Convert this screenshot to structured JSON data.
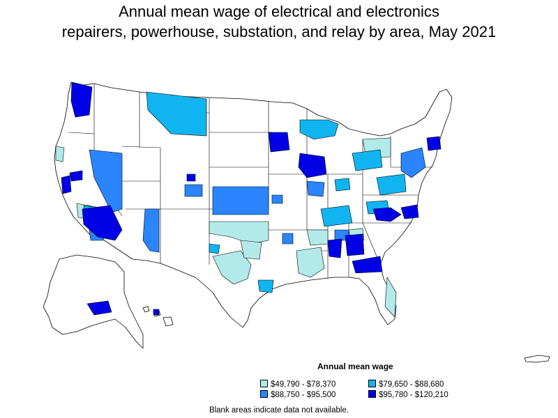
{
  "title": {
    "line1": "Annual mean wage of electrical and electronics",
    "line2": "repairers, powerhouse, substation, and relay by area, May 2021"
  },
  "legend": {
    "title": "Annual mean wage",
    "items": [
      {
        "label": "$49,790 - $78,370",
        "color": "#b2eaea"
      },
      {
        "label": "$79,650 - $88,680",
        "color": "#10b4f0"
      },
      {
        "label": "$88,750 - $95,500",
        "color": "#2a85ff"
      },
      {
        "label": "$95,780 - $120,210",
        "color": "#0000e6"
      }
    ]
  },
  "note": "Blank areas indicate data not available.",
  "map_colors": {
    "blank": "#ffffff",
    "border": "#000000"
  }
}
